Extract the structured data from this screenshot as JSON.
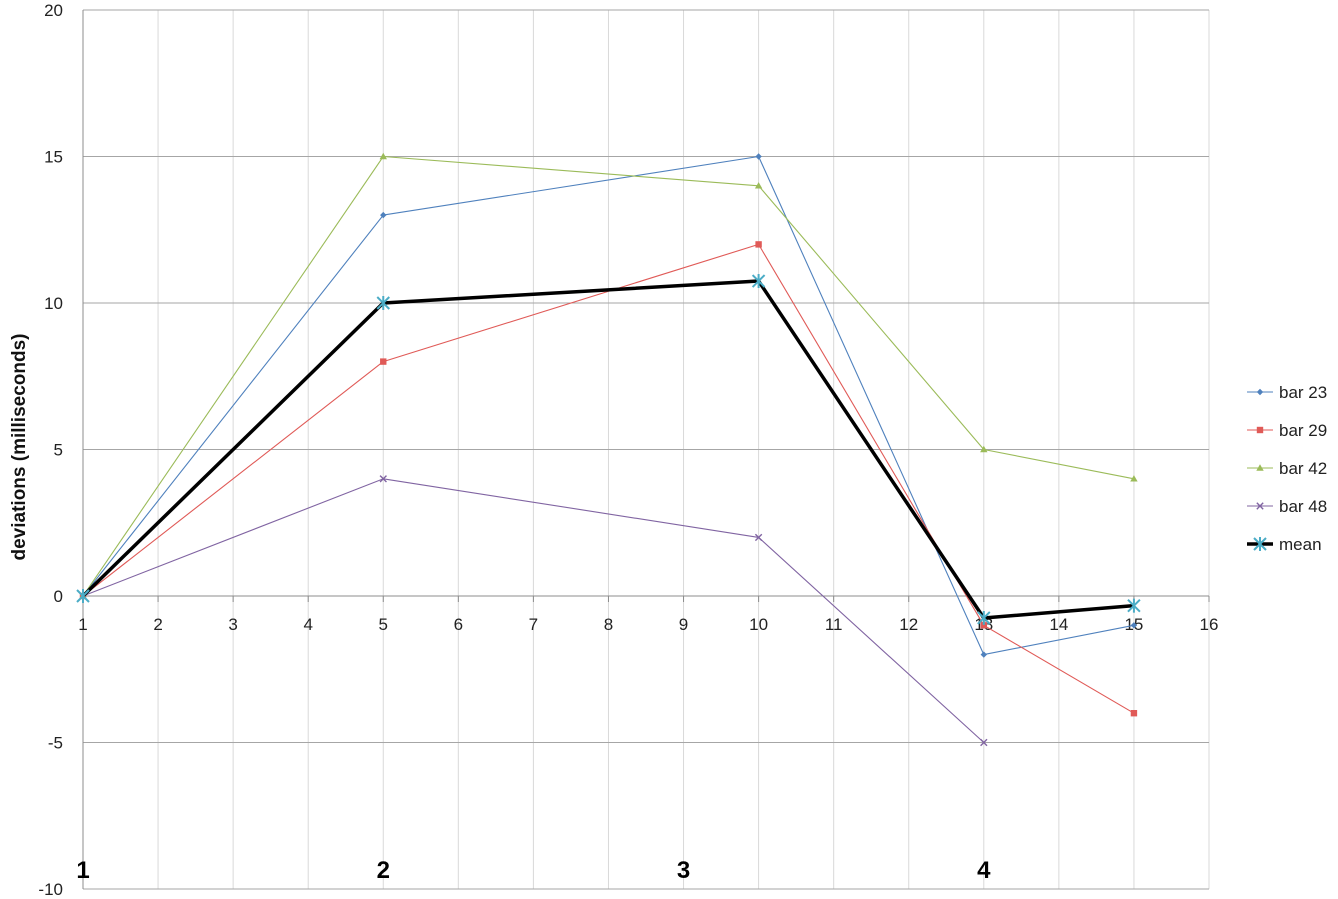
{
  "chart_data": {
    "type": "line",
    "title": "",
    "xlabel": "",
    "ylabel": "deviations (milliseconds)",
    "xlim": [
      1,
      16
    ],
    "ylim": [
      -10,
      20
    ],
    "x_ticks": [
      "1",
      "2",
      "3",
      "4",
      "5",
      "6",
      "7",
      "8",
      "9",
      "10",
      "11",
      "12",
      "13",
      "14",
      "15",
      "16"
    ],
    "y_ticks": [
      "-10",
      "-5",
      "0",
      "5",
      "10",
      "15",
      "20"
    ],
    "grid": true,
    "legend_position": "right",
    "x": [
      1,
      5,
      10,
      13,
      15
    ],
    "series": [
      {
        "name": "bar 23",
        "values": [
          0,
          13,
          15,
          -2,
          -1
        ],
        "color": "#4f81bd",
        "marker": "diamond"
      },
      {
        "name": "bar 29",
        "values": [
          0,
          8,
          12,
          -1,
          -4
        ],
        "color": "#e05a57",
        "marker": "square"
      },
      {
        "name": "bar 42",
        "values": [
          0,
          15,
          14,
          5,
          4
        ],
        "color": "#9bbb59",
        "marker": "triangle"
      },
      {
        "name": "bar 48",
        "values": [
          0,
          4,
          2,
          -5,
          null
        ],
        "color": "#8064a2",
        "marker": "x"
      },
      {
        "name": "mean",
        "values": [
          0,
          10,
          10.75,
          -0.75,
          -0.33
        ],
        "color": "#000000",
        "marker": "asterisk",
        "accent": "#4bacc6"
      }
    ],
    "annotations": [
      {
        "text": "1",
        "x": 1
      },
      {
        "text": "2",
        "x": 5
      },
      {
        "text": "3",
        "x": 9
      },
      {
        "text": "4",
        "x": 13
      }
    ]
  }
}
